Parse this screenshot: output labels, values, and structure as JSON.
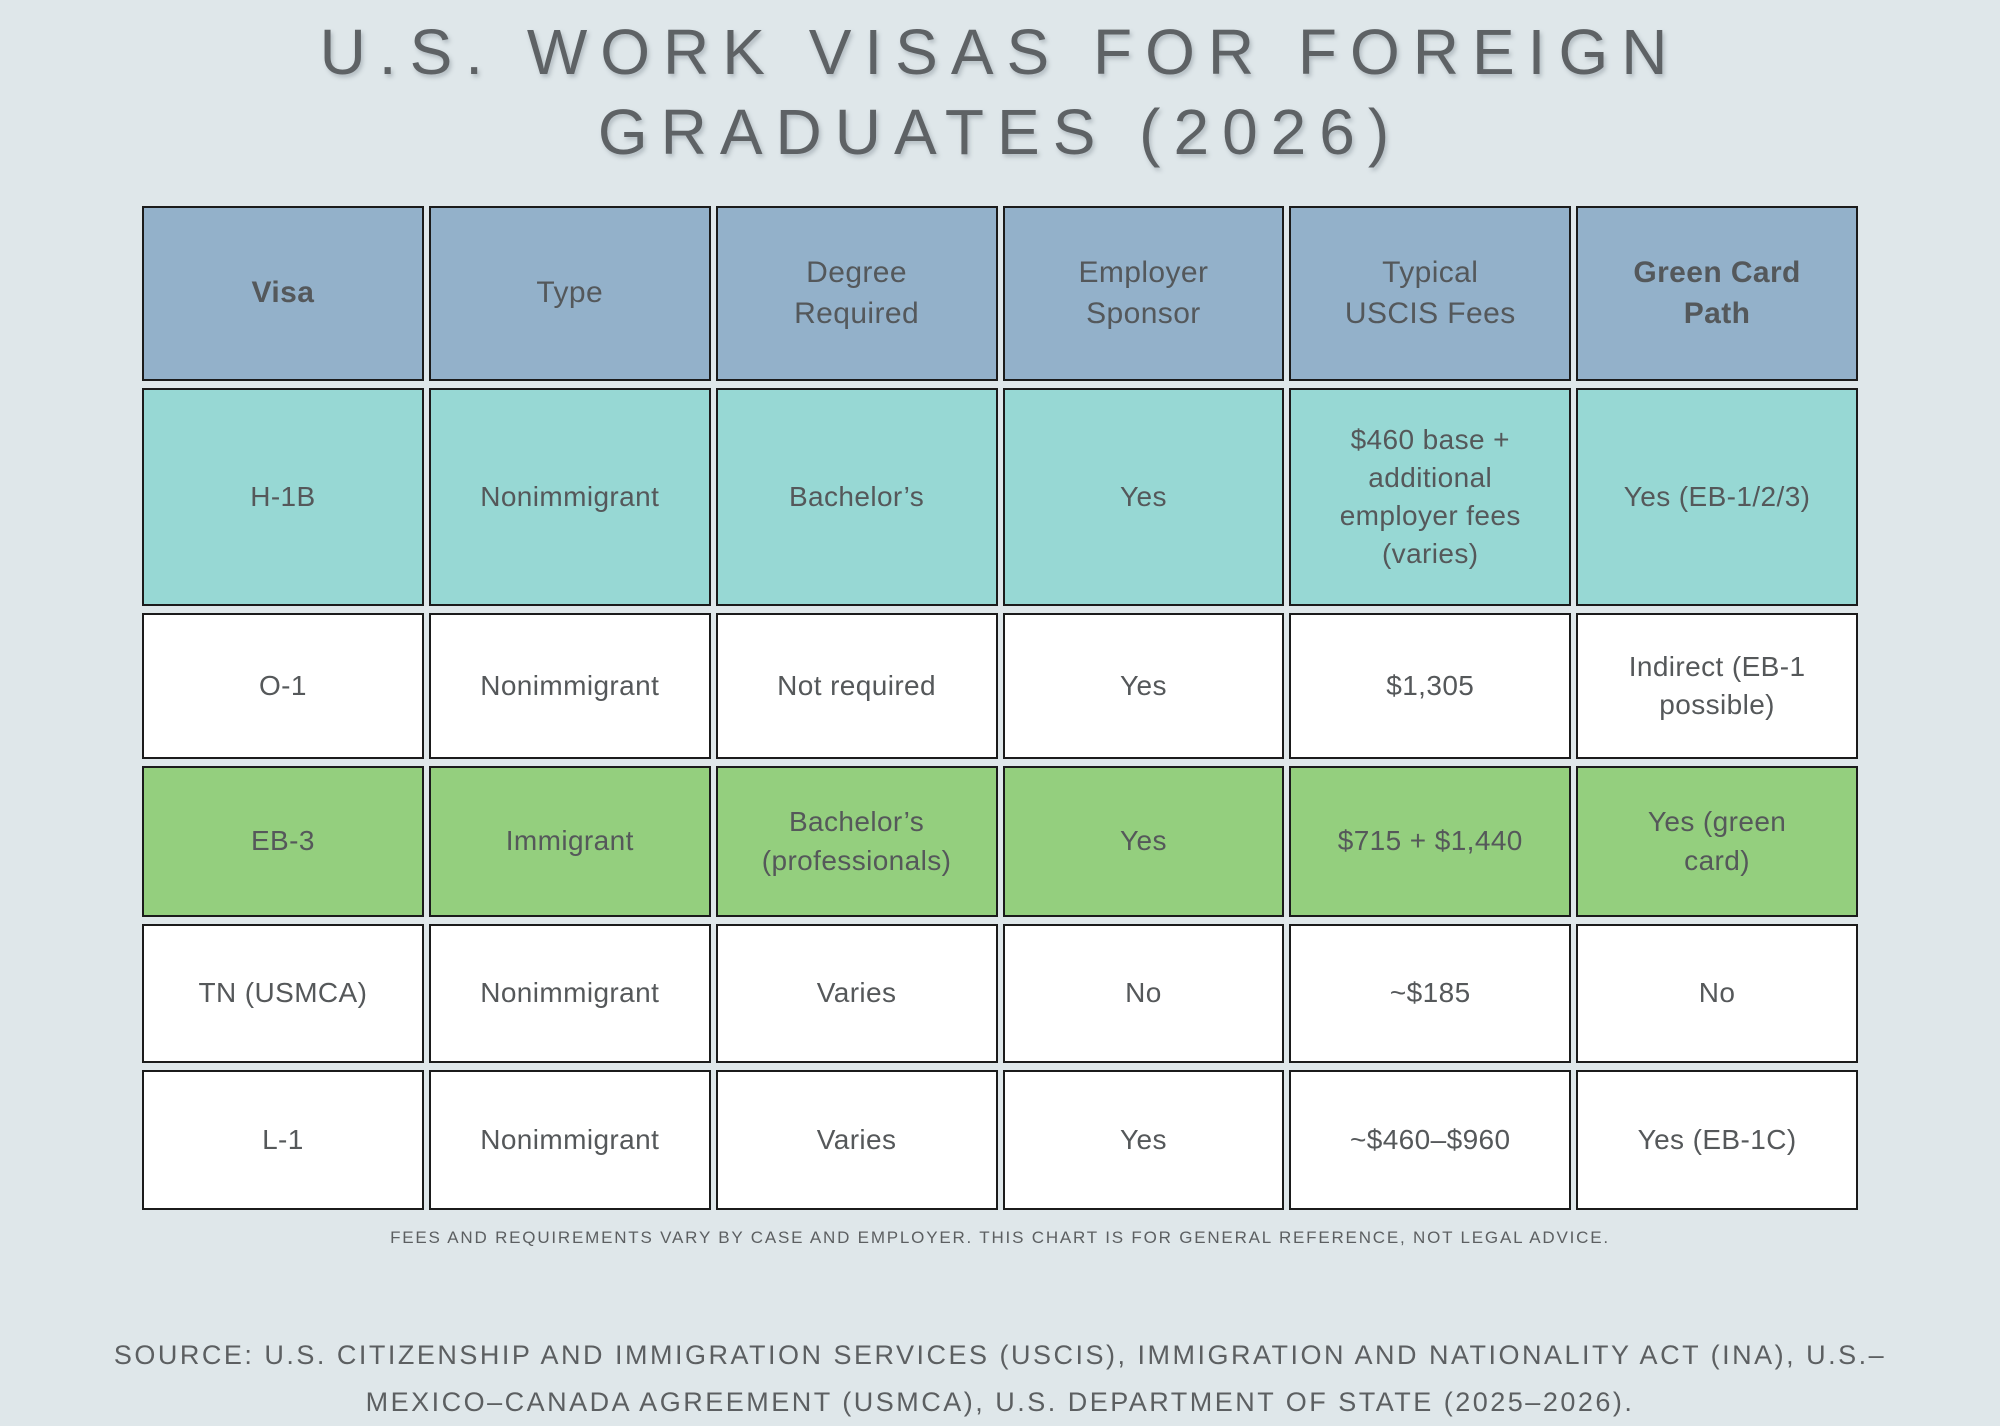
{
  "page": {
    "title_line1": "U.S. WORK VISAS FOR FOREIGN",
    "title_line2": "GRADUATES (2026)",
    "footnote": "FEES AND REQUIREMENTS VARY BY CASE AND EMPLOYER. THIS CHART IS FOR GENERAL REFERENCE, NOT LEGAL ADVICE.",
    "source_line1": "SOURCE: U.S. CITIZENSHIP AND IMMIGRATION SERVICES (USCIS), IMMIGRATION AND NATIONALITY ACT (INA), U.S.–",
    "source_line2": "MEXICO–CANADA AGREEMENT (USMCA), U.S. DEPARTMENT OF STATE (2025–2026)."
  },
  "colors": {
    "background": "#dfe7ea",
    "header_fill": "#93b1ca",
    "highlight_teal": "#97d8d4",
    "highlight_green": "#94cf7e",
    "row_white": "#ffffff",
    "cell_border": "#1b1b1b",
    "text": "#55585a"
  },
  "table": {
    "headers": [
      "Visa",
      "Type",
      "Degree\nRequired",
      "Employer\nSponsor",
      "Typical\nUSCIS Fees",
      "Green Card\nPath"
    ],
    "rows": [
      {
        "cells": [
          "H-1B",
          "Nonimmigrant",
          "Bachelor’s",
          "Yes",
          "$460 base +\nadditional\nemployer fees\n(varies)",
          "Yes (EB-1/2/3)"
        ]
      },
      {
        "cells": [
          "O-1",
          "Nonimmigrant",
          "Not required",
          "Yes",
          "$1,305",
          "Indirect (EB-1\npossible)"
        ]
      },
      {
        "cells": [
          "EB-3",
          "Immigrant",
          "Bachelor’s\n(professionals)",
          "Yes",
          "$715 + $1,440",
          "Yes (green\ncard)"
        ]
      },
      {
        "cells": [
          "TN (USMCA)",
          "Nonimmigrant",
          "Varies",
          "No",
          "~$185",
          "No"
        ]
      },
      {
        "cells": [
          "L-1",
          "Nonimmigrant",
          "Varies",
          "Yes",
          "~$460–$960",
          "Yes (EB-1C)"
        ]
      }
    ]
  },
  "chart_data": {
    "type": "table",
    "title": "U.S. WORK VISAS FOR FOREIGN GRADUATES (2026)",
    "columns": [
      "Visa",
      "Type",
      "Degree Required",
      "Employer Sponsor",
      "Typical USCIS Fees",
      "Green Card Path"
    ],
    "rows": [
      [
        "H-1B",
        "Nonimmigrant",
        "Bachelor’s",
        "Yes",
        "$460 base + additional employer fees (varies)",
        "Yes (EB-1/2/3)"
      ],
      [
        "O-1",
        "Nonimmigrant",
        "Not required",
        "Yes",
        "$1,305",
        "Indirect (EB-1 possible)"
      ],
      [
        "EB-3",
        "Immigrant",
        "Bachelor’s (professionals)",
        "Yes",
        "$715 + $1,440",
        "Yes (green card)"
      ],
      [
        "TN (USMCA)",
        "Nonimmigrant",
        "Varies",
        "No",
        "~$185",
        "No"
      ],
      [
        "L-1",
        "Nonimmigrant",
        "Varies",
        "Yes",
        "~$460–$960",
        "Yes (EB-1C)"
      ]
    ],
    "row_highlights": [
      "teal",
      "white",
      "green",
      "white",
      "white"
    ],
    "footnote": "FEES AND REQUIREMENTS VARY BY CASE AND EMPLOYER. THIS CHART IS FOR GENERAL REFERENCE, NOT LEGAL ADVICE.",
    "source": "SOURCE: U.S. CITIZENSHIP AND IMMIGRATION SERVICES (USCIS), IMMIGRATION AND NATIONALITY ACT (INA), U.S.–MEXICO–CANADA AGREEMENT (USMCA), U.S. DEPARTMENT OF STATE (2025–2026)."
  }
}
